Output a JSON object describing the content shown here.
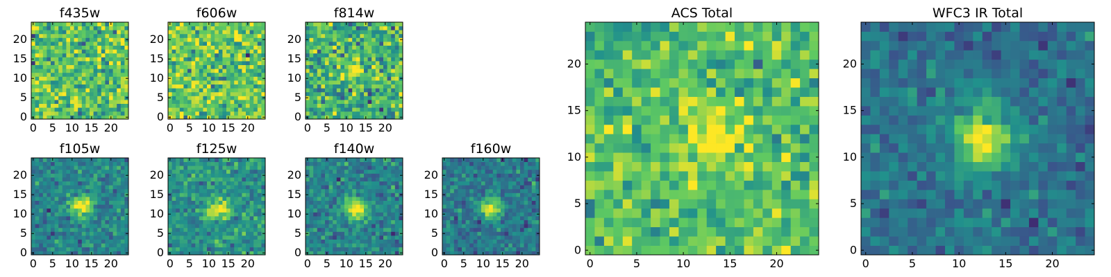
{
  "figure": {
    "colormap": [
      "#440154",
      "#3b528b",
      "#21918c",
      "#5ec962",
      "#fde725"
    ],
    "axis_color": "#000000",
    "background": "#ffffff"
  },
  "chart_data": [
    {
      "type": "heatmap",
      "title": "f435w",
      "grid": false,
      "legend": "none",
      "xlim": [
        -0.5,
        24.5
      ],
      "ylim": [
        -0.5,
        24.5
      ],
      "xticks": [
        0,
        5,
        10,
        15,
        20
      ],
      "yticks": [
        0,
        5,
        10,
        15,
        20
      ],
      "noise_level": 0.72,
      "noise_spread": 0.16,
      "source": null
    },
    {
      "type": "heatmap",
      "title": "f606w",
      "grid": false,
      "legend": "none",
      "xlim": [
        -0.5,
        24.5
      ],
      "ylim": [
        -0.5,
        24.5
      ],
      "xticks": [
        0,
        5,
        10,
        15,
        20
      ],
      "yticks": [
        0,
        5,
        10,
        15,
        20
      ],
      "noise_level": 0.74,
      "noise_spread": 0.16,
      "source": null
    },
    {
      "type": "heatmap",
      "title": "f814w",
      "grid": false,
      "legend": "none",
      "xlim": [
        -0.5,
        24.5
      ],
      "ylim": [
        -0.5,
        24.5
      ],
      "xticks": [
        0,
        5,
        10,
        15,
        20
      ],
      "yticks": [
        0,
        5,
        10,
        15,
        20
      ],
      "noise_level": 0.64,
      "noise_spread": 0.17,
      "source": {
        "x": 12.5,
        "y": 12.5,
        "sigma": 1.3,
        "peak": 0.45
      }
    },
    {
      "type": "heatmap",
      "title": "f105w",
      "grid": false,
      "legend": "none",
      "xlim": [
        -0.5,
        24.5
      ],
      "ylim": [
        -0.5,
        24.5
      ],
      "xticks": [
        0,
        5,
        10,
        15,
        20
      ],
      "yticks": [
        0,
        5,
        10,
        15,
        20
      ],
      "noise_level": 0.45,
      "noise_spread": 0.09,
      "source": {
        "x": 12.5,
        "y": 12.0,
        "sigma": 2.0,
        "peak": 0.6
      }
    },
    {
      "type": "heatmap",
      "title": "f125w",
      "grid": false,
      "legend": "none",
      "xlim": [
        -0.5,
        24.5
      ],
      "ylim": [
        -0.5,
        24.5
      ],
      "xticks": [
        0,
        5,
        10,
        15,
        20
      ],
      "yticks": [
        0,
        5,
        10,
        15,
        20
      ],
      "noise_level": 0.5,
      "noise_spread": 0.1,
      "source": {
        "x": 12.5,
        "y": 11.5,
        "sigma": 2.0,
        "peak": 0.55
      }
    },
    {
      "type": "heatmap",
      "title": "f140w",
      "grid": false,
      "legend": "none",
      "xlim": [
        -0.5,
        24.5
      ],
      "ylim": [
        -0.5,
        24.5
      ],
      "xticks": [
        0,
        5,
        10,
        15,
        20
      ],
      "yticks": [
        0,
        5,
        10,
        15,
        20
      ],
      "noise_level": 0.45,
      "noise_spread": 0.1,
      "source": {
        "x": 12.5,
        "y": 11.5,
        "sigma": 2.0,
        "peak": 0.6
      }
    },
    {
      "type": "heatmap",
      "title": "f160w",
      "grid": false,
      "legend": "none",
      "xlim": [
        -0.5,
        24.5
      ],
      "ylim": [
        -0.5,
        24.5
      ],
      "xticks": [
        0,
        5,
        10,
        15,
        20
      ],
      "yticks": [
        0,
        5,
        10,
        15,
        20
      ],
      "noise_level": 0.4,
      "noise_spread": 0.09,
      "source": {
        "x": 12.0,
        "y": 11.5,
        "sigma": 1.8,
        "peak": 0.62
      }
    },
    {
      "type": "heatmap",
      "title": "ACS Total",
      "grid": false,
      "legend": "none",
      "xlim": [
        -0.5,
        24.5
      ],
      "ylim": [
        -0.5,
        24.5
      ],
      "xticks": [
        0,
        5,
        10,
        15,
        20
      ],
      "yticks": [
        0,
        5,
        10,
        15,
        20
      ],
      "noise_level": 0.7,
      "noise_spread": 0.13,
      "source": {
        "x": 13.0,
        "y": 12.5,
        "sigma": 2.4,
        "peak": 0.3
      }
    },
    {
      "type": "heatmap",
      "title": "WFC3 IR Total",
      "grid": false,
      "legend": "none",
      "xlim": [
        -0.5,
        24.5
      ],
      "ylim": [
        -0.5,
        24.5
      ],
      "xticks": [
        0,
        5,
        10,
        15,
        20
      ],
      "yticks": [
        0,
        5,
        10,
        15,
        20
      ],
      "noise_level": 0.38,
      "noise_spread": 0.08,
      "source": {
        "x": 12.5,
        "y": 12.0,
        "sigma": 2.2,
        "peak": 0.62
      }
    }
  ]
}
